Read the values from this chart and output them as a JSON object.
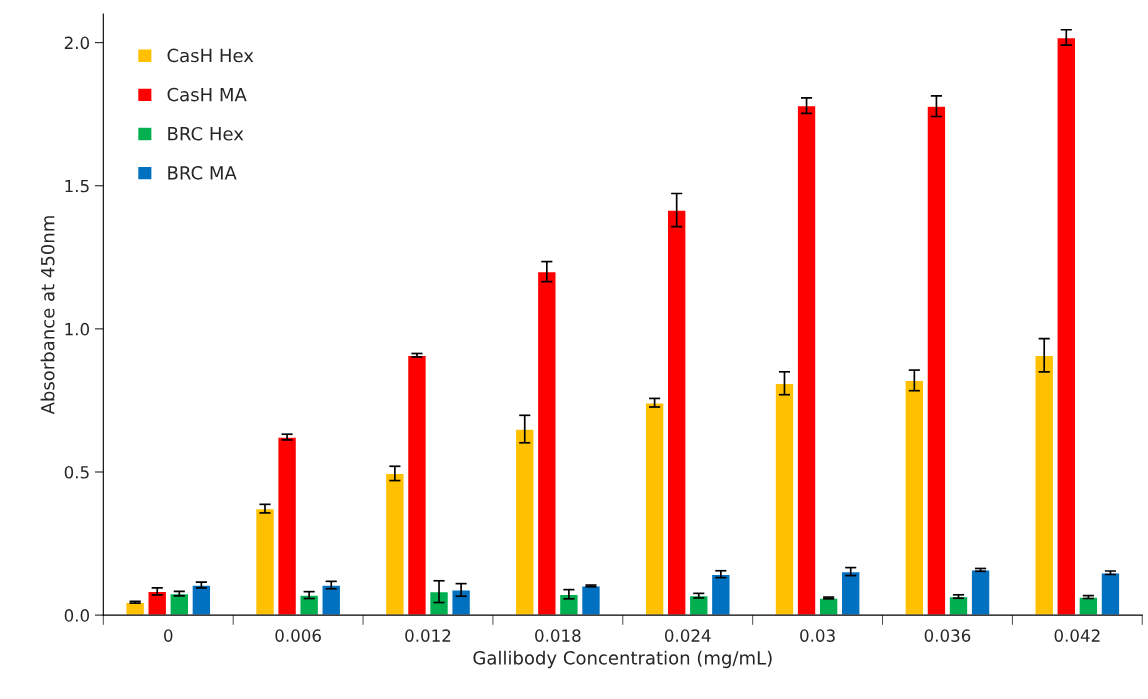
{
  "chart_data": {
    "type": "bar",
    "xlabel": "Gallibody Concentration (mg/mL)",
    "ylabel": "Absorbance at 450nm",
    "categories": [
      "0",
      "0.006",
      "0.012",
      "0.018",
      "0.024",
      "0.03",
      "0.036",
      "0.042"
    ],
    "series": [
      {
        "name": "CasH Hex",
        "color": "#ffc000",
        "values": [
          0.045,
          0.372,
          0.495,
          0.65,
          0.742,
          0.81,
          0.82,
          0.908
        ],
        "errors": [
          0.003,
          0.015,
          0.025,
          0.048,
          0.015,
          0.04,
          0.036,
          0.058
        ]
      },
      {
        "name": "CasH MA",
        "color": "#ff0000",
        "values": [
          0.083,
          0.622,
          0.908,
          1.2,
          1.415,
          1.78,
          1.778,
          2.018
        ],
        "errors": [
          0.012,
          0.01,
          0.006,
          0.035,
          0.058,
          0.027,
          0.036,
          0.027
        ]
      },
      {
        "name": "BRC Hex",
        "color": "#00b050",
        "values": [
          0.075,
          0.07,
          0.082,
          0.073,
          0.068,
          0.06,
          0.065,
          0.063
        ],
        "errors": [
          0.008,
          0.012,
          0.038,
          0.016,
          0.008,
          0.003,
          0.006,
          0.005
        ]
      },
      {
        "name": "BRC MA",
        "color": "#0070c0",
        "values": [
          0.105,
          0.105,
          0.088,
          0.102,
          0.143,
          0.152,
          0.158,
          0.148
        ],
        "errors": [
          0.01,
          0.013,
          0.022,
          0.003,
          0.012,
          0.014,
          0.005,
          0.006
        ]
      }
    ],
    "ylim": [
      0,
      2.1
    ],
    "yticks": [
      {
        "value": 0,
        "label": "0.0"
      },
      {
        "value": 0.5,
        "label": "0.5"
      },
      {
        "value": 1,
        "label": "1.0"
      },
      {
        "value": 1.5,
        "label": "1.5"
      },
      {
        "value": 2,
        "label": "2.0"
      }
    ],
    "legend": "top left",
    "grid": false
  }
}
